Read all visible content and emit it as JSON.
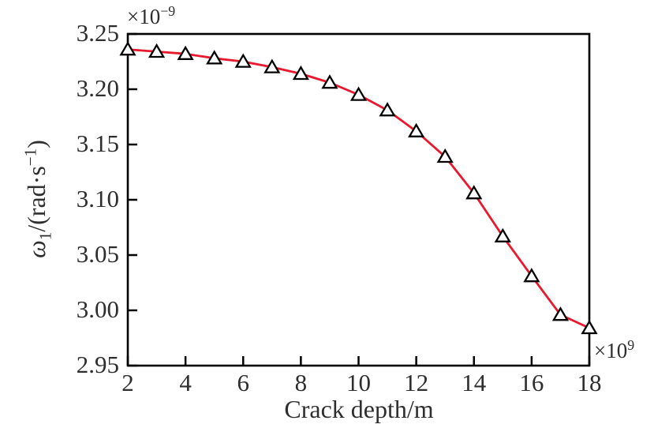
{
  "figure": {
    "background": "#ffffff",
    "text_color": "#2e2e2e",
    "axis_color": "#000000"
  },
  "chart_data": {
    "type": "line",
    "title": "",
    "xlabel": "Crack depth/m",
    "ylabel": "ω₁/(rad·s⁻¹)",
    "ylabel_parts": {
      "symbol": "ω",
      "subscript": "1",
      "mid": "/(rad·s",
      "superscript": "−1",
      "end": ")"
    },
    "x_offset_parts": {
      "base": "×10",
      "exp": "9"
    },
    "y_offset_parts": {
      "base": "×10",
      "exp": "−9"
    },
    "xlim": [
      2,
      18
    ],
    "ylim": [
      2.95,
      3.25
    ],
    "xticks": [
      2,
      4,
      6,
      8,
      10,
      12,
      14,
      16,
      18
    ],
    "xtick_labels": [
      "2",
      "4",
      "6",
      "8",
      "10",
      "12",
      "14",
      "16",
      "18"
    ],
    "yticks": [
      2.95,
      3.0,
      3.05,
      3.1,
      3.15,
      3.2,
      3.25
    ],
    "ytick_labels": [
      "2.95",
      "3.00",
      "3.05",
      "3.10",
      "3.15",
      "3.20",
      "3.25"
    ],
    "grid": false,
    "legend": null,
    "series": [
      {
        "name": "omega1-vs-crack-depth",
        "color": "#e8192c",
        "marker": "triangle-up-open",
        "marker_edge_color": "#000000",
        "marker_face_color": "#ffffff",
        "x": [
          2,
          3,
          4,
          5,
          6,
          7,
          8,
          9,
          10,
          11,
          12,
          13,
          14,
          15,
          16,
          17,
          18
        ],
        "y": [
          3.236,
          3.234,
          3.232,
          3.228,
          3.225,
          3.22,
          3.214,
          3.206,
          3.195,
          3.181,
          3.162,
          3.139,
          3.106,
          3.067,
          3.031,
          2.996,
          2.984
        ]
      }
    ]
  }
}
